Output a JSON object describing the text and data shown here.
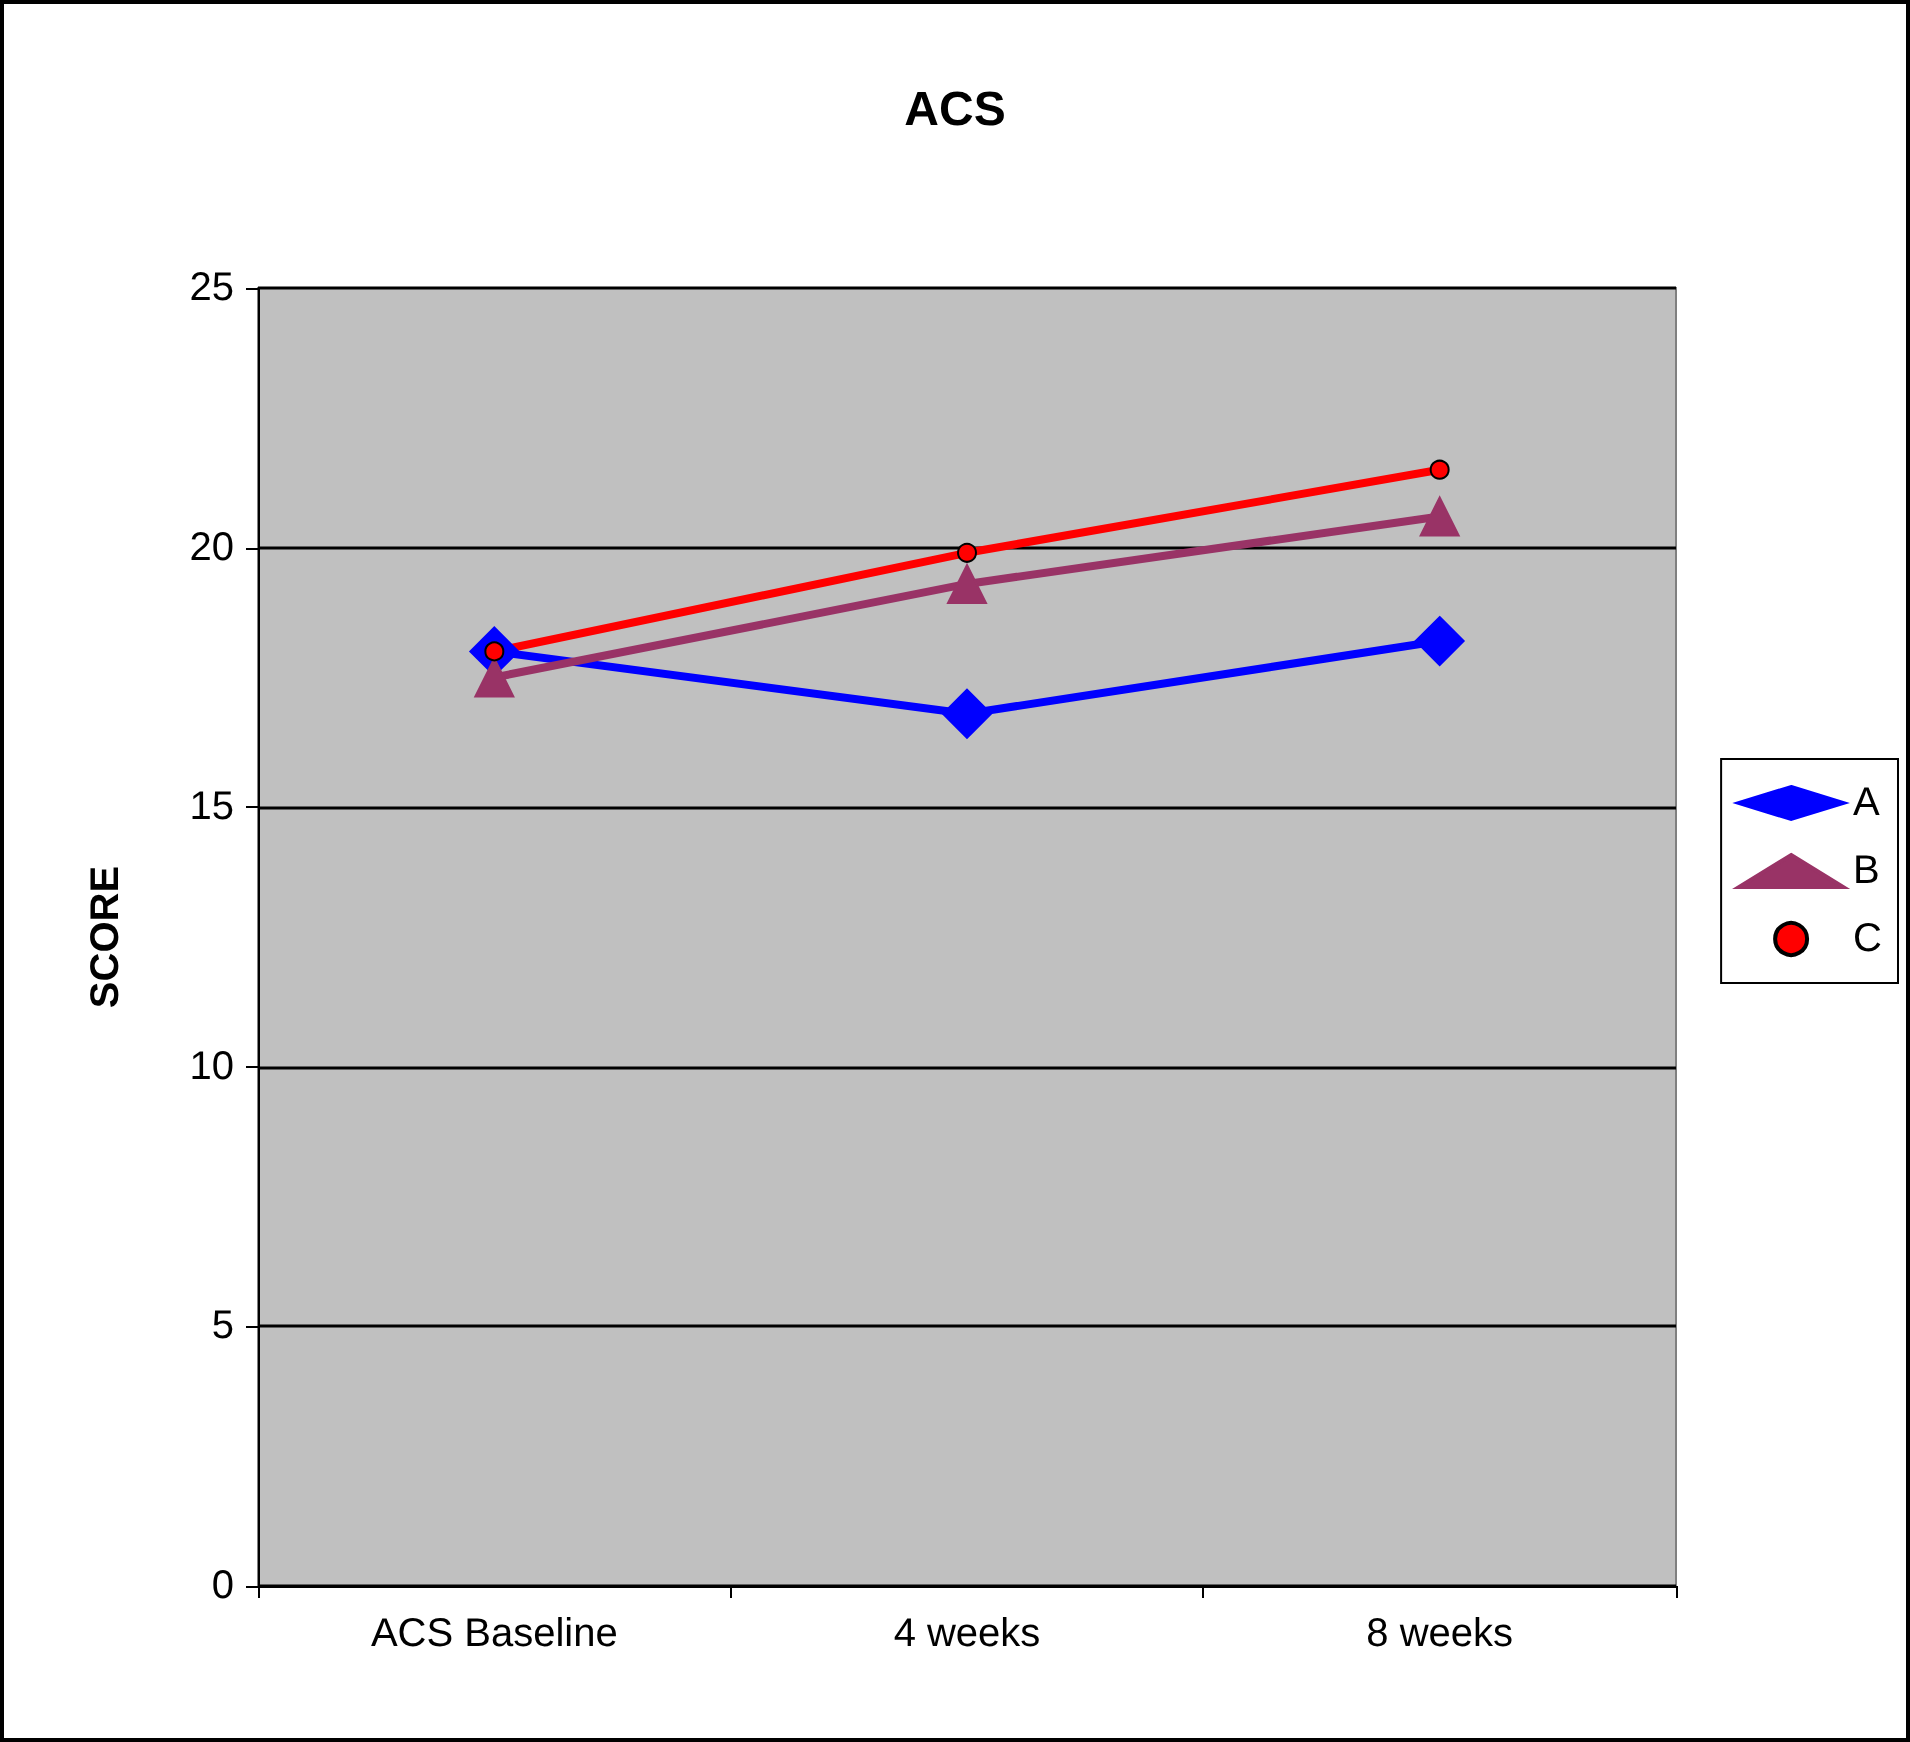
{
  "chart_data": {
    "type": "line",
    "title": "ACS",
    "ylabel": "SCORE",
    "categories": [
      "ACS Baseline",
      "4 weeks",
      "8 weeks"
    ],
    "series": [
      {
        "name": "A",
        "color": "#0000ff",
        "marker": "diamond",
        "values": [
          18.0,
          16.8,
          18.2
        ]
      },
      {
        "name": "B",
        "color": "#993366",
        "marker": "triangle",
        "values": [
          17.5,
          19.3,
          20.6
        ]
      },
      {
        "name": "C",
        "color": "#ff0000",
        "marker": "circle",
        "values": [
          18.0,
          19.9,
          21.5
        ]
      }
    ],
    "ylim": [
      0,
      25
    ],
    "yticks": [
      0,
      5,
      10,
      15,
      20,
      25
    ],
    "grid": "y",
    "legend": "right"
  }
}
